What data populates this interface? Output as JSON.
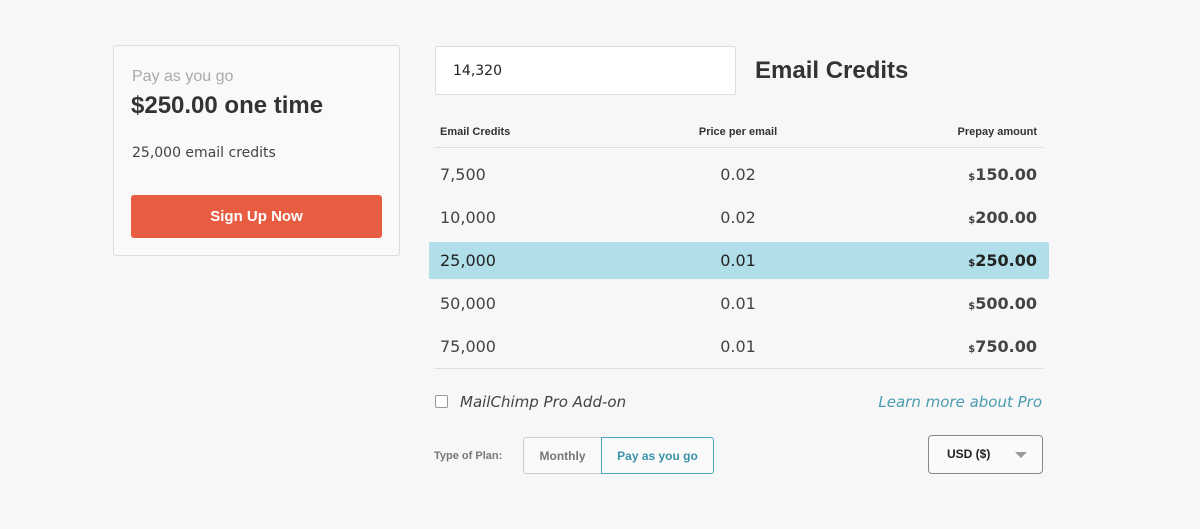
{
  "card": {
    "subtitle": "Pay as you go",
    "price": "$250.00 one time",
    "credits": "25,000 email credits",
    "button": "Sign Up Now"
  },
  "calculator": {
    "input_value": "14,320",
    "heading": "Email Credits",
    "table": {
      "headers": [
        "Email Credits",
        "Price per email",
        "Prepay amount"
      ],
      "selected_row": 2,
      "rows": [
        {
          "credits": "7,500",
          "price": "0.02",
          "currency": "$",
          "amount": "150.00"
        },
        {
          "credits": "10,000",
          "price": "0.02",
          "currency": "$",
          "amount": "200.00"
        },
        {
          "credits": "25,000",
          "price": "0.01",
          "currency": "$",
          "amount": "250.00"
        },
        {
          "credits": "50,000",
          "price": "0.01",
          "currency": "$",
          "amount": "500.00"
        },
        {
          "credits": "75,000",
          "price": "0.01",
          "currency": "$",
          "amount": "750.00"
        }
      ]
    },
    "addon_label": "MailChimp Pro Add-on",
    "addon_link": "Learn more about Pro",
    "plan_type_label": "Type of Plan:",
    "plan_options": [
      "Monthly",
      "Pay as you go"
    ],
    "active_option": 1,
    "currency_select": "USD ($)"
  }
}
